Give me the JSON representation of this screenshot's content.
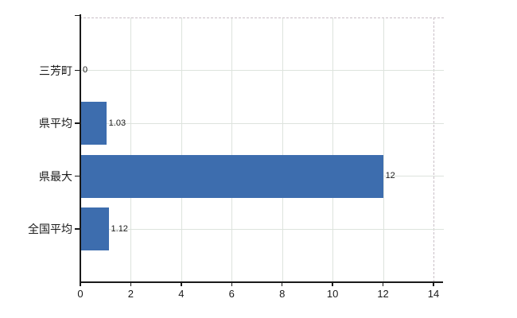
{
  "chart_data": {
    "type": "bar",
    "orientation": "horizontal",
    "title": "",
    "categories": [
      "三芳町",
      "県平均",
      "県最大",
      "全国平均"
    ],
    "values": [
      0,
      1.03,
      12,
      1.12
    ],
    "value_labels": [
      "0",
      "1.03",
      "12",
      "1.12"
    ],
    "xlabel": "",
    "ylabel": "",
    "xlim": [
      0,
      14
    ],
    "x_ticks": [
      0,
      2,
      4,
      6,
      8,
      10,
      12,
      14
    ],
    "x_tick_labels": [
      "0",
      "2",
      "4",
      "6",
      "8",
      "10",
      "12",
      "14"
    ],
    "grid": true,
    "legend": false,
    "bar_color": "#3d6dae",
    "axis_color": "#1a1a1a",
    "gridline_color": "#dde3dd",
    "dashed_border_color": "#c9bfc6",
    "label_color": "#1a1a1a",
    "background": "#ffffff"
  }
}
